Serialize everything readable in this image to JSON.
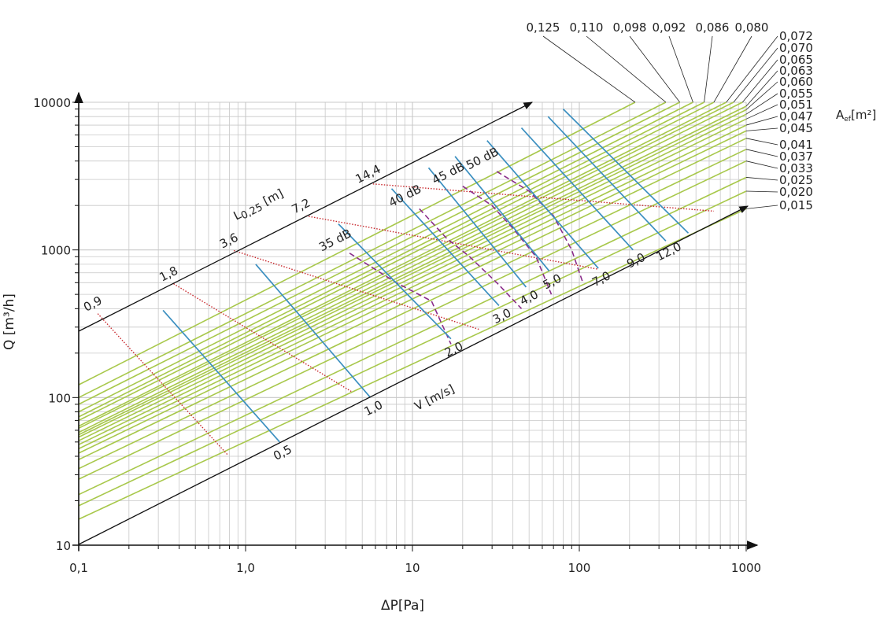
{
  "chart_data": {
    "type": "line",
    "scale": {
      "x": "log",
      "y": "log"
    },
    "xlim": [
      0.1,
      1000
    ],
    "ylim": [
      10,
      10000
    ],
    "grid": true,
    "xlabel": "ΔP[Pa]",
    "ylabel": "Q [m³/h]",
    "x_ticks": [
      {
        "v": 0.1,
        "label": "0,1"
      },
      {
        "v": 1,
        "label": "1,0"
      },
      {
        "v": 10,
        "label": "10"
      },
      {
        "v": 100,
        "label": "100"
      },
      {
        "v": 1000,
        "label": "1000"
      }
    ],
    "y_ticks": [
      {
        "v": 10,
        "label": "10"
      },
      {
        "v": 100,
        "label": "100"
      },
      {
        "v": 1000,
        "label": "1000"
      },
      {
        "v": 10000,
        "label": "10000"
      }
    ],
    "aef_title": "A",
    "aef_sub": "ef",
    "aef_unit": "[m²]",
    "aef_series": [
      {
        "name": "0,125",
        "points": [
          [
            0.1,
            122
          ],
          [
            216,
            10000
          ]
        ]
      },
      {
        "name": "0,110",
        "points": [
          [
            0.1,
            100
          ],
          [
            330,
            10000
          ]
        ]
      },
      {
        "name": "0,098",
        "points": [
          [
            0.1,
            90
          ],
          [
            400,
            10000
          ]
        ]
      },
      {
        "name": "0,092",
        "points": [
          [
            0.1,
            80
          ],
          [
            480,
            10000
          ]
        ]
      },
      {
        "name": "0,086",
        "points": [
          [
            0.1,
            74
          ],
          [
            560,
            10000
          ]
        ]
      },
      {
        "name": "0,080",
        "points": [
          [
            0.1,
            70
          ],
          [
            640,
            10000
          ]
        ]
      },
      {
        "name": "0,072",
        "points": [
          [
            0.1,
            64
          ],
          [
            760,
            10000
          ]
        ]
      },
      {
        "name": "0,070",
        "points": [
          [
            0.1,
            62
          ],
          [
            840,
            10000
          ]
        ]
      },
      {
        "name": "0,065",
        "points": [
          [
            0.1,
            58
          ],
          [
            950,
            10000
          ]
        ]
      },
      {
        "name": "0,063",
        "points": [
          [
            0.1,
            56
          ],
          [
            1000,
            9400
          ]
        ]
      },
      {
        "name": "0,060",
        "points": [
          [
            0.1,
            54
          ],
          [
            1000,
            8900
          ]
        ]
      },
      {
        "name": "0,055",
        "points": [
          [
            0.1,
            51
          ],
          [
            1000,
            8300
          ]
        ]
      },
      {
        "name": "0,051",
        "points": [
          [
            0.1,
            48
          ],
          [
            1000,
            7700
          ]
        ]
      },
      {
        "name": "0,047",
        "points": [
          [
            0.1,
            45
          ],
          [
            1000,
            7000
          ]
        ]
      },
      {
        "name": "0,045",
        "points": [
          [
            0.1,
            42
          ],
          [
            1000,
            6400
          ]
        ]
      },
      {
        "name": "0,041",
        "points": [
          [
            0.1,
            38
          ],
          [
            1000,
            5700
          ]
        ]
      },
      {
        "name": "0,037",
        "points": [
          [
            0.1,
            33
          ],
          [
            1000,
            4800
          ]
        ]
      },
      {
        "name": "0,033",
        "points": [
          [
            0.1,
            28
          ],
          [
            1000,
            4000
          ]
        ]
      },
      {
        "name": "0,025",
        "points": [
          [
            0.1,
            22
          ],
          [
            1000,
            3100
          ]
        ]
      },
      {
        "name": "0,020",
        "points": [
          [
            0.1,
            18.5
          ],
          [
            1000,
            2500
          ]
        ]
      },
      {
        "name": "0,015",
        "points": [
          [
            0.1,
            15
          ],
          [
            1000,
            1900
          ]
        ]
      }
    ],
    "velocity_title": "V [m/s]",
    "velocity_lines": [
      {
        "label": "0,5",
        "points": [
          [
            0.32,
            390
          ],
          [
            1.6,
            50
          ]
        ]
      },
      {
        "label": "1,0",
        "points": [
          [
            1.15,
            800
          ],
          [
            5.6,
            100
          ]
        ]
      },
      {
        "label": "2,0",
        "points": [
          [
            3.6,
            1500
          ],
          [
            17,
            250
          ]
        ]
      },
      {
        "label": "3,0",
        "points": [
          [
            7.5,
            2600
          ],
          [
            33,
            420
          ]
        ]
      },
      {
        "label": "4,0",
        "points": [
          [
            12.5,
            3600
          ],
          [
            48,
            560
          ]
        ]
      },
      {
        "label": "5,0",
        "points": [
          [
            18,
            4300
          ],
          [
            66,
            720
          ]
        ]
      },
      {
        "label": "7,0",
        "points": [
          [
            28,
            5500
          ],
          [
            130,
            750
          ]
        ]
      },
      {
        "label": "9,0",
        "points": [
          [
            45,
            6700
          ],
          [
            210,
            1000
          ]
        ]
      },
      {
        "label": "12,0",
        "points": [
          [
            65,
            8000
          ],
          [
            330,
            1150
          ]
        ]
      },
      {
        "label": "",
        "points": [
          [
            80,
            9000
          ],
          [
            450,
            1300
          ]
        ]
      }
    ],
    "length_title": "L",
    "length_sub": "0,25",
    "length_unit": "[m]",
    "length_lines": [
      {
        "label": "0,9",
        "points": [
          [
            0.13,
            370
          ],
          [
            0.78,
            41
          ]
        ]
      },
      {
        "label": "1,8",
        "points": [
          [
            0.37,
            590
          ],
          [
            4.3,
            110
          ]
        ]
      },
      {
        "label": "3,6",
        "points": [
          [
            0.85,
            990
          ],
          [
            25,
            290
          ]
        ]
      },
      {
        "label": "7,2",
        "points": [
          [
            2.3,
            1700
          ],
          [
            130,
            740
          ]
        ]
      },
      {
        "label": "14,4",
        "points": [
          [
            5.8,
            2800
          ],
          [
            640,
            1830
          ]
        ]
      }
    ],
    "db_lines": [
      {
        "label": "35 dB",
        "points": [
          [
            4.2,
            950
          ],
          [
            8,
            600
          ],
          [
            13,
            450
          ],
          [
            17,
            230
          ]
        ]
      },
      {
        "label": "40 dB",
        "points": [
          [
            11,
            1900
          ],
          [
            16,
            1200
          ],
          [
            22,
            900
          ],
          [
            32,
            600
          ],
          [
            45,
            400
          ]
        ]
      },
      {
        "label": "45 dB",
        "points": [
          [
            20,
            2700
          ],
          [
            30,
            2000
          ],
          [
            40,
            1400
          ],
          [
            55,
            900
          ],
          [
            68,
            500
          ]
        ]
      },
      {
        "label": "50 dB",
        "points": [
          [
            32,
            3400
          ],
          [
            50,
            2500
          ],
          [
            70,
            1700
          ],
          [
            90,
            1000
          ],
          [
            105,
            600
          ]
        ]
      }
    ],
    "colors": {
      "aef": "#a8c84b",
      "velocity": "#3b8fc0",
      "length": "#c8282d",
      "db": "#8a2c8a",
      "grid": "#c8c8c8",
      "axis": "#111111"
    }
  }
}
